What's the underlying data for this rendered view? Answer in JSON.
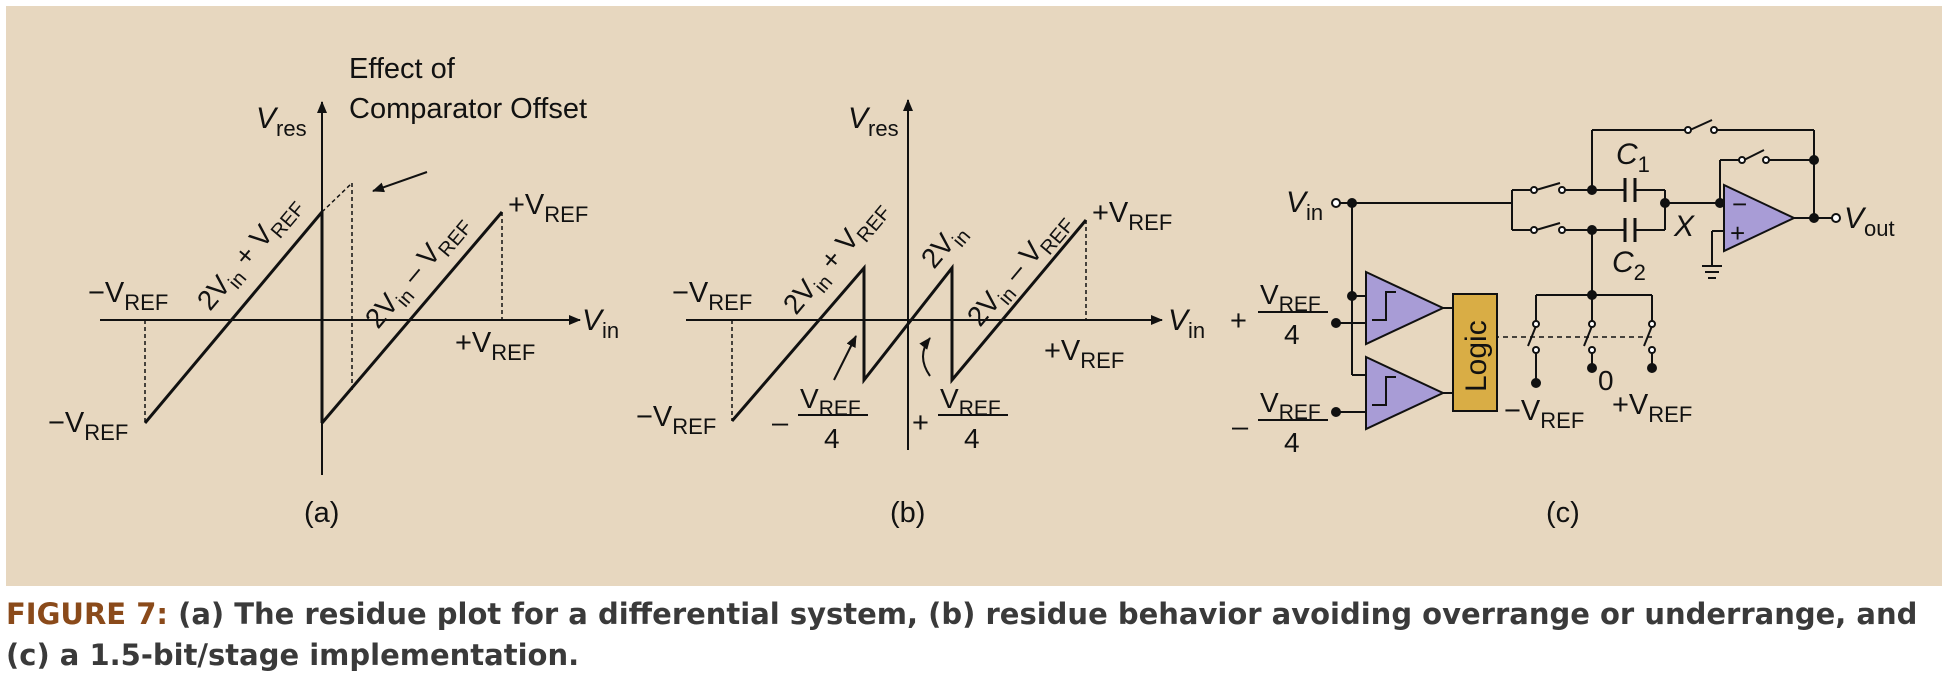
{
  "colors": {
    "panel": "#e7d7bf",
    "comparator_fill": "#a89cd6",
    "logic_fill": "#d9ad45",
    "caption_label": "#8a4a1a",
    "ink": "#111111"
  },
  "panel_a": {
    "label": "(a)",
    "axis_y": "V",
    "axis_y_sub": "res",
    "axis_x": "V",
    "axis_x_sub": "in",
    "annotation_line1": "Effect of",
    "annotation_line2": "Comparator Offset",
    "neg_vref_left": "−V",
    "neg_vref_left_sub": "REF",
    "neg_vref_bottom": "−V",
    "neg_vref_bottom_sub": "REF",
    "pos_vref_top": "+V",
    "pos_vref_top_sub": "REF",
    "pos_vref_axis": "+V",
    "pos_vref_axis_sub": "REF",
    "seg1_a": "2V",
    "seg1_b": "in",
    "seg1_c": " + V",
    "seg1_d": "REF",
    "seg2_a": "2V",
    "seg2_b": "in",
    "seg2_c": " – V",
    "seg2_d": "REF"
  },
  "panel_b": {
    "label": "(b)",
    "axis_y": "V",
    "axis_y_sub": "res",
    "axis_x": "V",
    "axis_x_sub": "in",
    "neg_vref_left": "−V",
    "neg_vref_left_sub": "REF",
    "neg_vref_bottom": "−V",
    "neg_vref_bottom_sub": "REF",
    "pos_vref_top": "+V",
    "pos_vref_top_sub": "REF",
    "pos_vref_axis": "+V",
    "pos_vref_axis_sub": "REF",
    "seg1_a": "2V",
    "seg1_b": "in",
    "seg1_c": " + V",
    "seg1_d": "REF",
    "seg2_a": "2V",
    "seg2_b": "in",
    "seg3_a": "2V",
    "seg3_b": "in",
    "seg3_c": " – V",
    "seg3_d": "REF",
    "frac_neg_sign": "–",
    "frac_pos_sign": "+",
    "frac_num": "V",
    "frac_num_sub": "REF",
    "frac_den": "4"
  },
  "panel_c": {
    "label": "(c)",
    "vin": "V",
    "vin_sub": "in",
    "vout": "V",
    "vout_sub": "out",
    "c1": "C",
    "c1_sub": "1",
    "c2": "C",
    "c2_sub": "2",
    "node_x": "X",
    "opamp_minus": "−",
    "opamp_plus": "+",
    "logic": "Logic",
    "thresh_pos_sign": "+",
    "thresh_neg_sign": "–",
    "thresh_num": "V",
    "thresh_num_sub": "REF",
    "thresh_den": "4",
    "zero": "0",
    "neg_vref": "−V",
    "neg_vref_sub": "REF",
    "pos_vref": "+V",
    "pos_vref_sub": "REF"
  },
  "caption": {
    "label": "FIGURE 7:",
    "text": " (a) The residue plot for a differential system, (b) residue behavior avoiding overrange or underrange, and (c) a 1.5-bit/stage implementation."
  }
}
